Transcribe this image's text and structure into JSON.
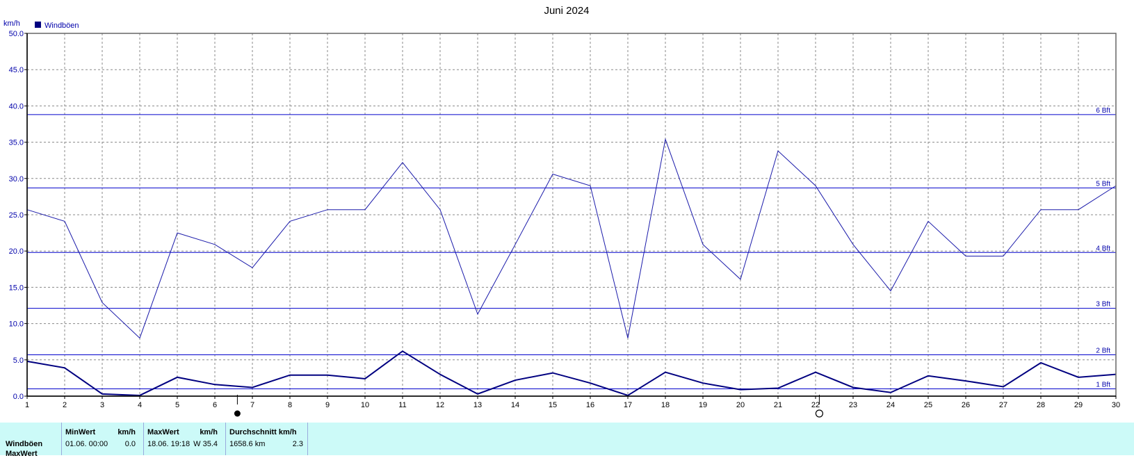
{
  "chart_data": {
    "type": "line",
    "title": "Juni 2024",
    "ylabel": "km/h",
    "xlabel": "",
    "ylim": [
      0,
      50
    ],
    "xlim": [
      1,
      30
    ],
    "grid": true,
    "legend_placement": "top-left",
    "legend": [
      {
        "label": "Windböen",
        "color": "#000080"
      }
    ],
    "y_ticks": [
      "0.0",
      "5.0",
      "10.0",
      "15.0",
      "20.0",
      "25.0",
      "30.0",
      "35.0",
      "40.0",
      "45.0",
      "50.0"
    ],
    "x_ticks": [
      "1",
      "2",
      "3",
      "4",
      "5",
      "6",
      "7",
      "8",
      "9",
      "10",
      "11",
      "12",
      "13",
      "14",
      "15",
      "16",
      "17",
      "18",
      "19",
      "20",
      "21",
      "22",
      "23",
      "24",
      "25",
      "26",
      "27",
      "28",
      "29",
      "30"
    ],
    "x": [
      1,
      2,
      3,
      4,
      5,
      6,
      7,
      8,
      9,
      10,
      11,
      12,
      13,
      14,
      15,
      16,
      17,
      18,
      19,
      20,
      21,
      22,
      23,
      24,
      25,
      26,
      27,
      28,
      29,
      30
    ],
    "series": [
      {
        "name": "Windböen",
        "color": "#1a1aaa",
        "stroke": 1,
        "values": [
          25.7,
          24.1,
          12.9,
          8.0,
          22.5,
          20.9,
          17.7,
          24.1,
          25.7,
          25.7,
          32.2,
          25.7,
          11.3,
          20.9,
          30.6,
          29.0,
          8.0,
          35.4,
          20.9,
          16.1,
          33.8,
          29.0,
          20.9,
          14.5,
          24.1,
          19.3,
          19.3,
          25.7,
          25.7,
          29.0
        ]
      },
      {
        "name": "",
        "color": "#000080",
        "stroke": 2,
        "values": [
          4.8,
          3.9,
          0.3,
          0.1,
          2.6,
          1.6,
          1.2,
          2.9,
          2.9,
          2.4,
          6.2,
          3.0,
          0.3,
          2.2,
          3.2,
          1.8,
          0.1,
          3.3,
          1.8,
          0.9,
          1.1,
          3.3,
          1.2,
          0.5,
          2.8,
          2.1,
          1.3,
          4.6,
          2.6,
          3.0
        ]
      }
    ],
    "reference_lines": [
      {
        "label": "1 Bft",
        "value": 1.0
      },
      {
        "label": "2 Bft",
        "value": 5.7
      },
      {
        "label": "3 Bft",
        "value": 12.1
      },
      {
        "label": "4 Bft",
        "value": 19.8
      },
      {
        "label": "5 Bft",
        "value": 28.7
      },
      {
        "label": "6 Bft",
        "value": 38.8
      }
    ],
    "moon_phases": [
      {
        "x": 6.6,
        "phase": "new"
      },
      {
        "x": 22.1,
        "phase": "full"
      }
    ]
  },
  "stats": {
    "row_label": "Windböen",
    "row_label_2": "MaxWert",
    "min": {
      "header": "MinWert",
      "unit": "km/h",
      "time": "01.06.  00:00",
      "value": "0.0"
    },
    "max": {
      "header": "MaxWert",
      "unit": "km/h",
      "time": "18.06.  19:18",
      "value": "W 35.4"
    },
    "avg": {
      "header": "Durchschnitt km/h",
      "time": "1658.6 km",
      "value": "2.3"
    }
  }
}
